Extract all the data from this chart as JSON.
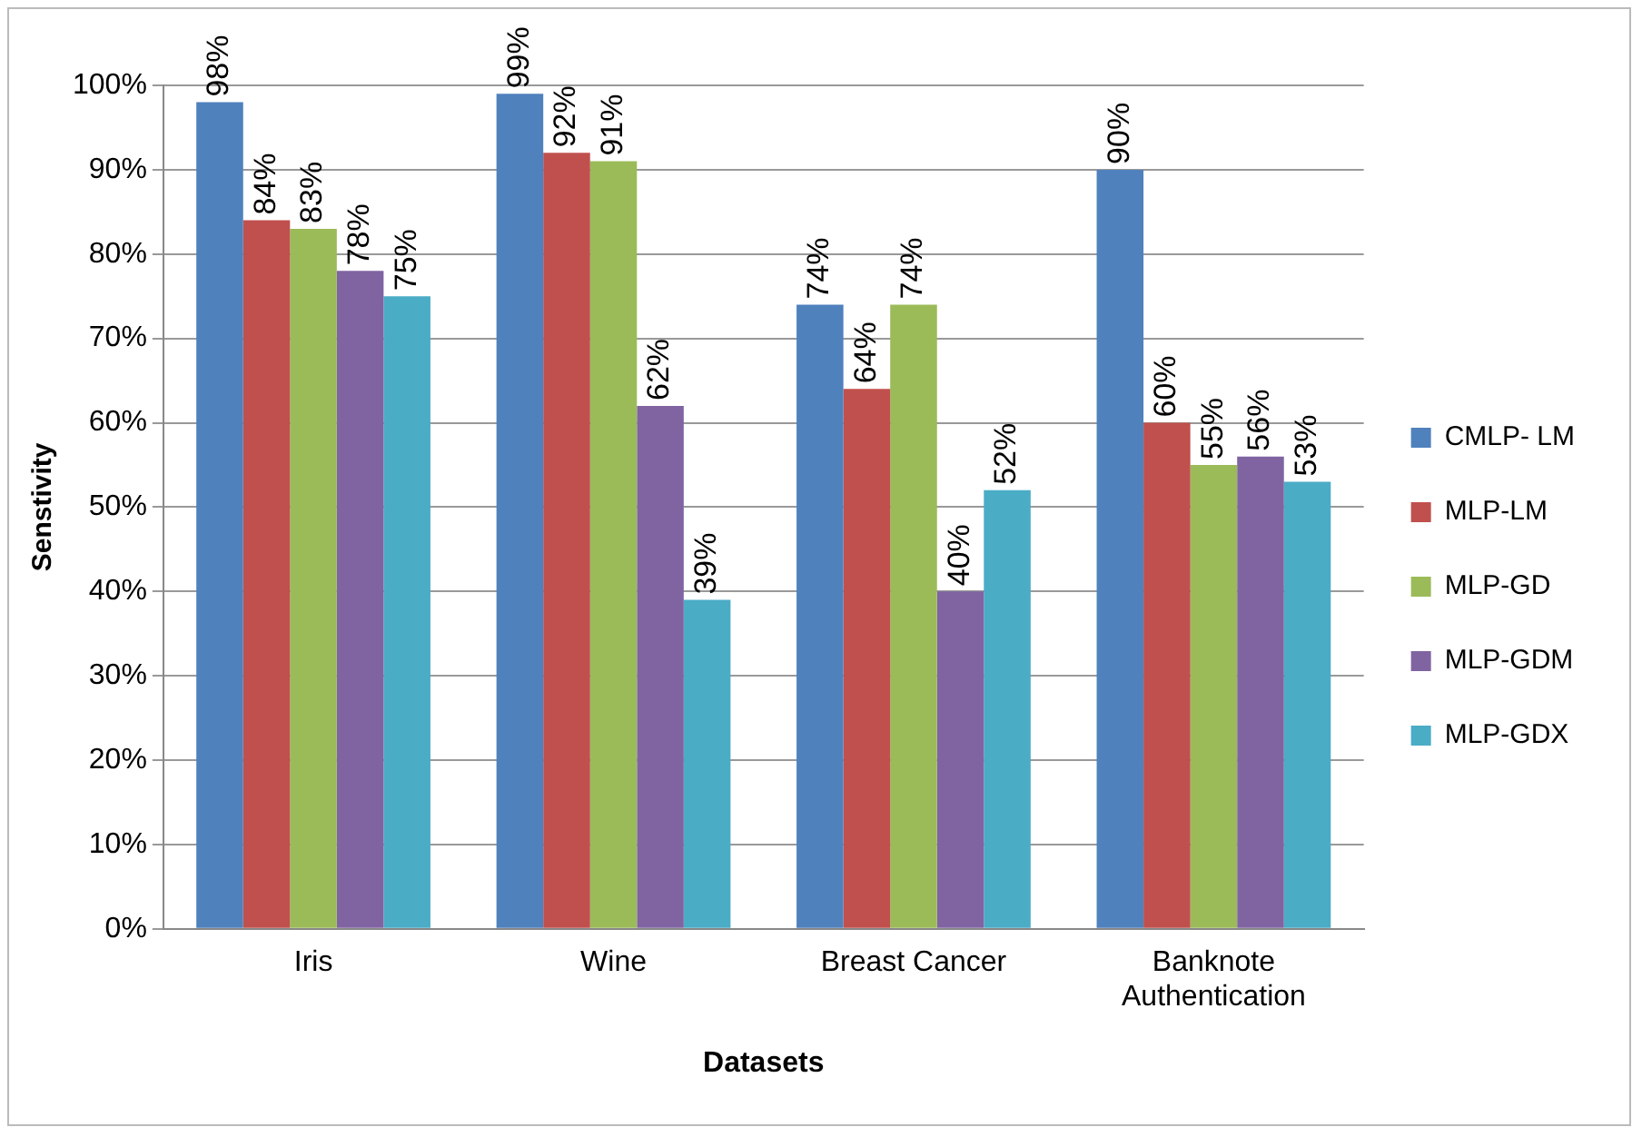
{
  "chart_data": {
    "type": "bar",
    "xlabel": "Datasets",
    "ylabel": "Senstivity",
    "categories": [
      "Iris",
      "Wine",
      "Breast Cancer",
      "Banknote Authentication"
    ],
    "series": [
      {
        "name": "CMLP- LM",
        "color": "#4f81bd",
        "values": [
          98,
          99,
          74,
          90
        ],
        "value_labels": [
          "98%",
          "99%",
          "74%",
          "90%"
        ]
      },
      {
        "name": "MLP-LM",
        "color": "#c0504d",
        "values": [
          84,
          92,
          64,
          60
        ],
        "value_labels": [
          "84%",
          "92%",
          "64%",
          "60%"
        ]
      },
      {
        "name": "MLP-GD",
        "color": "#9bbb59",
        "values": [
          83,
          91,
          74,
          55
        ],
        "value_labels": [
          "83%",
          "91%",
          "74%",
          "55%"
        ]
      },
      {
        "name": "MLP-GDM",
        "color": "#8064a2",
        "values": [
          78,
          62,
          40,
          56
        ],
        "value_labels": [
          "78%",
          "62%",
          "40%",
          "56%"
        ]
      },
      {
        "name": "MLP-GDX",
        "color": "#4bacc6",
        "values": [
          75,
          39,
          52,
          53
        ],
        "value_labels": [
          "75%",
          "39%",
          "52%",
          "53%"
        ]
      }
    ],
    "ylim": [
      0,
      100
    ],
    "yticks": [
      {
        "value": 0,
        "label": "0%"
      },
      {
        "value": 10,
        "label": "10%"
      },
      {
        "value": 20,
        "label": "20%"
      },
      {
        "value": 30,
        "label": "30%"
      },
      {
        "value": 40,
        "label": "40%"
      },
      {
        "value": 50,
        "label": "50%"
      },
      {
        "value": 60,
        "label": "60%"
      },
      {
        "value": 70,
        "label": "70%"
      },
      {
        "value": 80,
        "label": "80%"
      },
      {
        "value": 90,
        "label": "90%"
      },
      {
        "value": 100,
        "label": "100%"
      }
    ],
    "grid": "y",
    "legend": "right"
  }
}
